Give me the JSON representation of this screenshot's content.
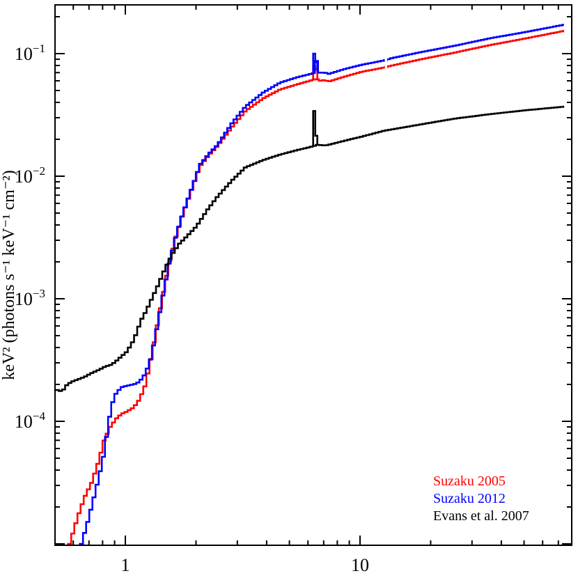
{
  "chart_data": {
    "type": "line",
    "title": "",
    "xlabel": "",
    "ylabel": "keV² (photons s⁻¹ keV⁻¹ cm⁻²)",
    "xscale": "log",
    "yscale": "log",
    "xlim": [
      0.5,
      80
    ],
    "ylim": [
      1e-05,
      0.25
    ],
    "grid": false,
    "legend_position": "lower right",
    "x_tick_labels": [
      "1",
      "10"
    ],
    "x_ticks": [
      1,
      10
    ],
    "y_tick_labels": [
      "10⁻⁴",
      "10⁻³",
      "10⁻²",
      "10⁻¹"
    ],
    "y_ticks": [
      0.0001,
      0.001,
      0.01,
      0.1
    ],
    "series": [
      {
        "name": "Suzaku 2005",
        "color": "#ff0000",
        "x": [
          0.57,
          0.62,
          0.66,
          0.71,
          0.76,
          0.8,
          0.85,
          0.9,
          0.95,
          1.0,
          1.07,
          1.13,
          1.19,
          1.25,
          1.31,
          1.4,
          1.51,
          1.62,
          1.73,
          1.88,
          2.05,
          2.25,
          2.43,
          2.8,
          3.2,
          3.8,
          4.5,
          5.3,
          6.2,
          6.35,
          6.4,
          6.45,
          6.6,
          7.0,
          7.2,
          8.5,
          10.0,
          12.5,
          13.5,
          18,
          25,
          35,
          50,
          74
        ],
        "y": [
          1e-05,
          1.7e-05,
          2.4e-05,
          3.2e-05,
          4.8e-05,
          7e-05,
          9e-05,
          0.000105,
          0.000115,
          0.00012,
          0.00013,
          0.00015,
          0.00019,
          0.00028,
          0.00045,
          0.0009,
          0.0019,
          0.0032,
          0.0048,
          0.0075,
          0.012,
          0.015,
          0.0175,
          0.025,
          0.034,
          0.043,
          0.051,
          0.056,
          0.061,
          0.062,
          0.079,
          0.062,
          0.06,
          0.061,
          0.059,
          0.065,
          0.071,
          0.077,
          0.08,
          0.09,
          0.102,
          0.117,
          0.133,
          0.154
        ]
      },
      {
        "name": "Suzaku 2012",
        "color": "#0000ff",
        "x": [
          0.64,
          0.68,
          0.72,
          0.76,
          0.8,
          0.83,
          0.86,
          0.9,
          0.95,
          1.0,
          1.07,
          1.13,
          1.19,
          1.25,
          1.31,
          1.4,
          1.51,
          1.62,
          1.73,
          1.88,
          2.05,
          2.25,
          2.43,
          2.8,
          3.2,
          3.8,
          4.5,
          5.3,
          6.2,
          6.35,
          6.4,
          6.45,
          6.6,
          7.0,
          7.2,
          8.5,
          10.0,
          12.5,
          13.5,
          18,
          25,
          35,
          50,
          74
        ],
        "y": [
          1e-05,
          1.5e-05,
          2.3e-05,
          3.5e-05,
          5.5e-05,
          9e-05,
          0.000135,
          0.00017,
          0.00019,
          0.000195,
          0.0002,
          0.00021,
          0.00024,
          0.0003,
          0.00045,
          0.0009,
          0.0019,
          0.0033,
          0.005,
          0.0078,
          0.0125,
          0.0155,
          0.018,
          0.027,
          0.037,
          0.048,
          0.058,
          0.064,
          0.069,
          0.071,
          0.1,
          0.073,
          0.07,
          0.07,
          0.068,
          0.075,
          0.081,
          0.088,
          0.092,
          0.103,
          0.116,
          0.133,
          0.15,
          0.173
        ]
      },
      {
        "name": "Evans et al. 2007",
        "color": "#000000",
        "x": [
          0.505,
          0.53,
          0.55,
          0.58,
          0.62,
          0.66,
          0.7,
          0.75,
          0.81,
          0.86,
          0.9,
          0.95,
          1.0,
          1.07,
          1.15,
          1.21,
          1.27,
          1.36,
          1.46,
          1.56,
          1.67,
          1.82,
          1.98,
          2.2,
          2.43,
          2.8,
          3.2,
          3.8,
          4.5,
          5.3,
          6.2,
          6.35,
          6.4,
          6.45,
          6.6,
          7.0,
          7.2,
          8.5,
          10.0,
          12.5,
          18,
          25,
          35,
          50,
          74
        ],
        "y": [
          0.00018,
          0.000175,
          0.000195,
          0.00021,
          0.00022,
          0.00023,
          0.000245,
          0.00026,
          0.00028,
          0.00029,
          0.00031,
          0.00034,
          0.00037,
          0.00046,
          0.00067,
          0.0008,
          0.00098,
          0.0013,
          0.0018,
          0.0023,
          0.0028,
          0.0033,
          0.0039,
          0.0053,
          0.0068,
          0.0092,
          0.0118,
          0.0135,
          0.015,
          0.0163,
          0.0175,
          0.0178,
          0.034,
          0.018,
          0.018,
          0.0178,
          0.018,
          0.0195,
          0.021,
          0.0235,
          0.0265,
          0.0295,
          0.032,
          0.0345,
          0.037
        ]
      }
    ],
    "annotations": []
  },
  "legend": {
    "items": [
      {
        "label": "Suzaku 2005",
        "color": "#ff0000"
      },
      {
        "label": "Suzaku 2012",
        "color": "#0000ff"
      },
      {
        "label": "Evans et al. 2007",
        "color": "#000000"
      }
    ]
  },
  "axes": {
    "y_label": "keV² (photons s⁻¹ keV⁻¹ cm⁻²)",
    "y_ticks": [
      {
        "mantissa": "10",
        "exp": "−1",
        "value": 0.1
      },
      {
        "mantissa": "10",
        "exp": "−2",
        "value": 0.01
      },
      {
        "mantissa": "10",
        "exp": "−3",
        "value": 0.001
      },
      {
        "mantissa": "10",
        "exp": "−4",
        "value": 0.0001
      }
    ],
    "x_ticks": [
      {
        "label": "1",
        "value": 1
      },
      {
        "label": "10",
        "value": 10
      }
    ]
  }
}
